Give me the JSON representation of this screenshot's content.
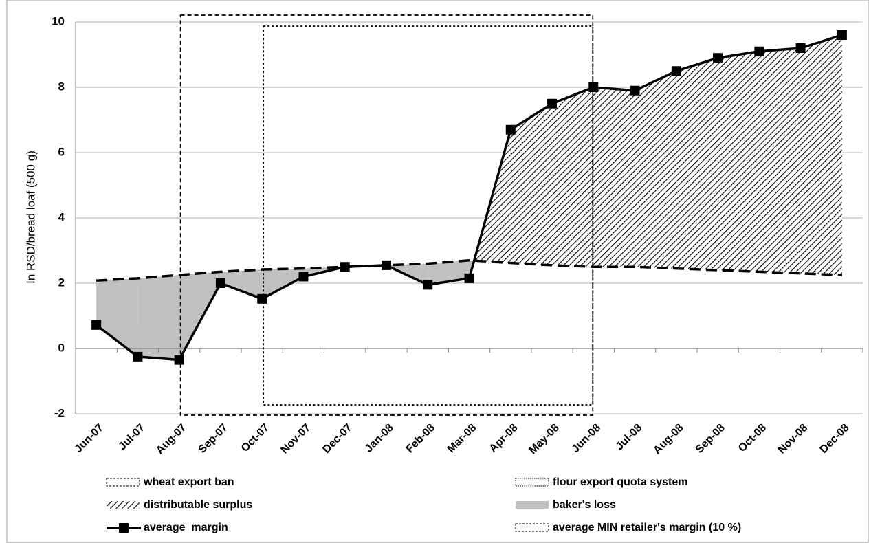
{
  "chart_data": {
    "type": "line",
    "y_label": "In RSD/bread loaf (500 g)",
    "categories": [
      "Jun-07",
      "Jul-07",
      "Aug-07",
      "Sep-07",
      "Oct-07",
      "Nov-07",
      "Dec-07",
      "Jan-08",
      "Feb-08",
      "Mar-08",
      "Apr-08",
      "May-08",
      "Jun-08",
      "Jul-08",
      "Aug-08",
      "Sep-08",
      "Oct-08",
      "Nov-08",
      "Dec-08"
    ],
    "series": [
      {
        "name": "average  margin",
        "color": "#000000",
        "style": "solid-square",
        "values": [
          0.72,
          -0.25,
          -0.35,
          2.0,
          1.52,
          2.2,
          2.5,
          2.55,
          1.95,
          2.15,
          6.7,
          7.5,
          8.0,
          7.9,
          8.5,
          8.9,
          9.1,
          9.2,
          9.6
        ]
      },
      {
        "name": "average MIN retailer's margin (10 %)",
        "color": "#000000",
        "style": "dashed",
        "values": [
          2.08,
          2.15,
          2.25,
          2.35,
          2.42,
          2.45,
          2.5,
          2.55,
          2.6,
          2.7,
          2.62,
          2.55,
          2.5,
          2.5,
          2.45,
          2.4,
          2.35,
          2.3,
          2.25
        ]
      }
    ],
    "areas": [
      {
        "name": "distributable surplus",
        "fill": "hatch"
      },
      {
        "name": "baker's loss",
        "color": "#c0c0c0"
      }
    ],
    "periods": [
      {
        "name": "wheat export ban",
        "style": "dashed"
      },
      {
        "name": "flour export quota system",
        "style": "dotted"
      }
    ],
    "ylim": [
      -2,
      10
    ],
    "yticks": [
      -2,
      0,
      2,
      4,
      6,
      8,
      10
    ],
    "grid": true
  }
}
